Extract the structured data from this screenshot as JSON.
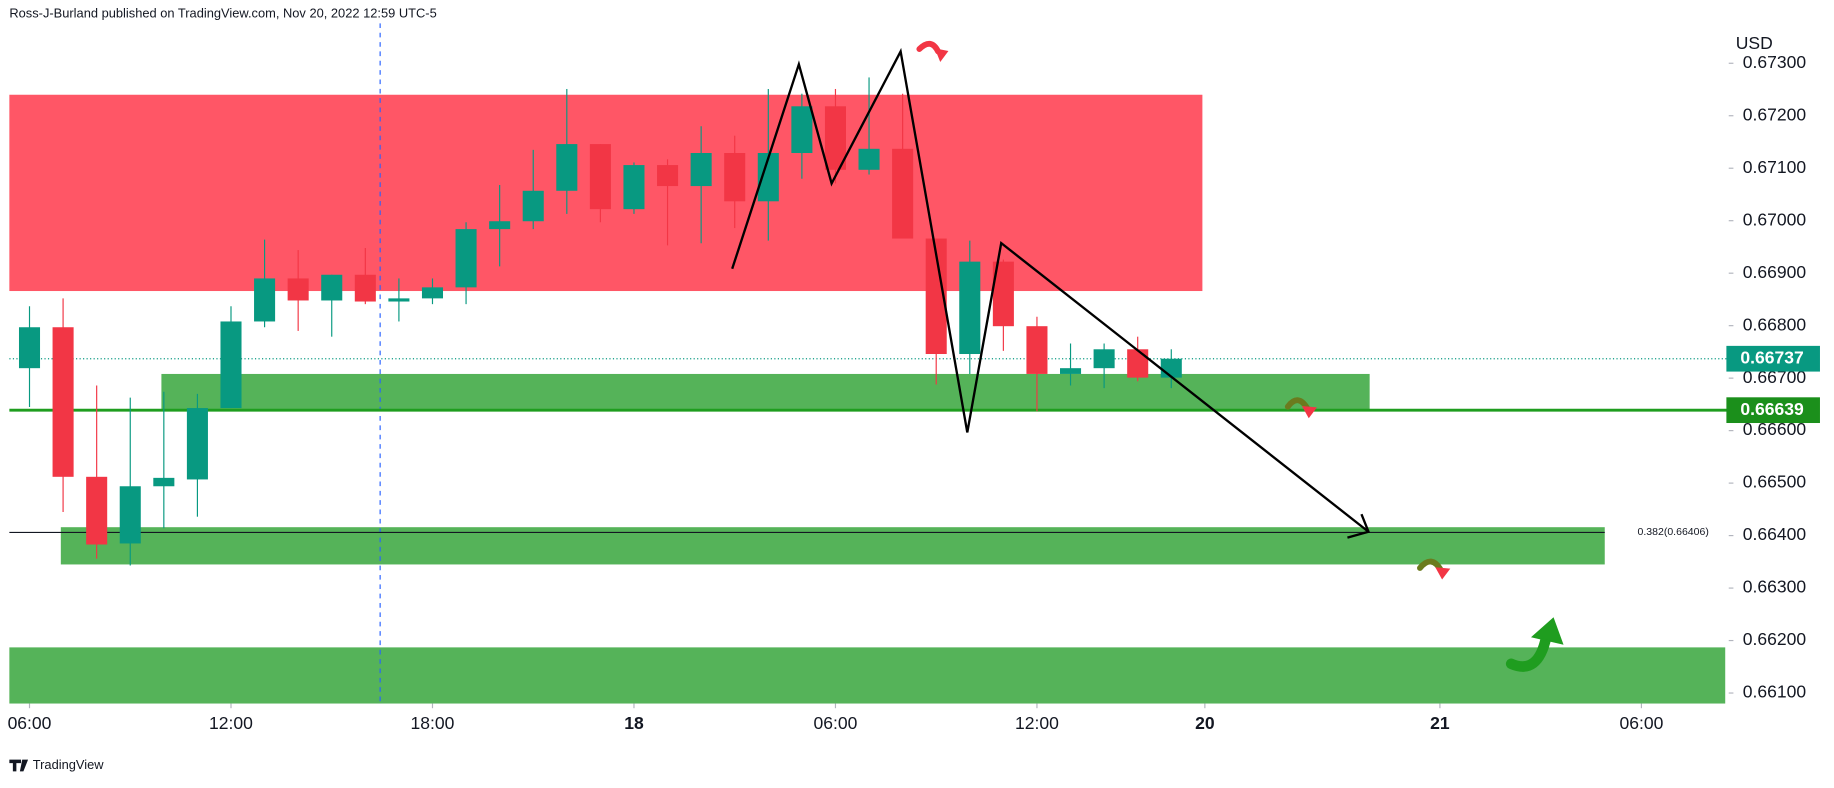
{
  "chart_data": {
    "type": "candlestick",
    "header": "Ross-J-Burland published on TradingView.com, Nov 20, 2022 12:59 UTC-5",
    "currency": "USD",
    "brand": "TradingView",
    "up_color": "#089981",
    "down_color": "#f23645",
    "open": [
      0.66719,
      0.66797,
      0.66512,
      0.66385,
      0.66494,
      0.66507,
      0.66643,
      0.66808,
      0.6689,
      0.66848,
      0.66897,
      0.66846,
      0.66852,
      0.66873,
      0.66984,
      0.66999,
      0.67057,
      0.67146,
      0.67022,
      0.67106,
      0.67066,
      0.67129,
      0.67037,
      0.67129,
      0.67218,
      0.67097,
      0.67137,
      0.66966,
      0.66746,
      0.66922,
      0.66799,
      0.66708,
      0.66719,
      0.66755,
      0.66701
    ],
    "high": [
      0.66837,
      0.66852,
      0.66686,
      0.66663,
      0.66674,
      0.6667,
      0.66837,
      0.66964,
      0.66944,
      0.66897,
      0.66948,
      0.6689,
      0.6689,
      0.66997,
      0.67068,
      0.67135,
      0.67251,
      0.67146,
      0.67111,
      0.67117,
      0.6718,
      0.67162,
      0.67251,
      0.67242,
      0.67251,
      0.67273,
      0.67242,
      0.66966,
      0.66962,
      0.66926,
      0.66817,
      0.66766,
      0.66766,
      0.66779,
      0.66755
    ],
    "low": [
      0.66645,
      0.66445,
      0.66356,
      0.66343,
      0.66414,
      0.66436,
      0.66643,
      0.66797,
      0.6679,
      0.66779,
      0.66841,
      0.66808,
      0.66841,
      0.66841,
      0.66913,
      0.66984,
      0.67013,
      0.66997,
      0.67013,
      0.66953,
      0.66957,
      0.66986,
      0.66962,
      0.6708,
      0.67071,
      0.67088,
      0.66966,
      0.66688,
      0.66708,
      0.66752,
      0.66637,
      0.66686,
      0.66681,
      0.66694,
      0.66681
    ],
    "close": [
      0.66797,
      0.66512,
      0.66383,
      0.66494,
      0.6651,
      0.66643,
      0.66808,
      0.6689,
      0.66848,
      0.66897,
      0.66846,
      0.66852,
      0.66873,
      0.66984,
      0.66999,
      0.67057,
      0.67146,
      0.67022,
      0.67106,
      0.67066,
      0.67129,
      0.67037,
      0.67129,
      0.67218,
      0.67097,
      0.67137,
      0.66966,
      0.66746,
      0.66922,
      0.66799,
      0.66708,
      0.66719,
      0.66755,
      0.66701,
      0.66737
    ],
    "xlim": [
      -0.6,
      50.6
    ],
    "xticks": [
      {
        "value": 0,
        "label": "06:00"
      },
      {
        "value": 6,
        "label": "12:00"
      },
      {
        "value": 12,
        "label": "18:00"
      },
      {
        "value": 18,
        "label": "18"
      },
      {
        "value": 24,
        "label": "06:00"
      },
      {
        "value": 30,
        "label": "12:00"
      },
      {
        "value": 35,
        "label": "20"
      },
      {
        "value": 42,
        "label": "21"
      },
      {
        "value": 48,
        "label": "06:00"
      }
    ],
    "ylim": [
      0.6608,
      0.67376
    ],
    "yticks": [
      {
        "value": 0.661,
        "label": "0.66100"
      },
      {
        "value": 0.662,
        "label": "0.66200"
      },
      {
        "value": 0.663,
        "label": "0.66300"
      },
      {
        "value": 0.664,
        "label": "0.66400"
      },
      {
        "value": 0.665,
        "label": "0.66500"
      },
      {
        "value": 0.666,
        "label": "0.66600"
      },
      {
        "value": 0.667,
        "label": "0.66700"
      },
      {
        "value": 0.668,
        "label": "0.66800"
      },
      {
        "value": 0.669,
        "label": "0.66900"
      },
      {
        "value": 0.67,
        "label": "0.67000"
      },
      {
        "value": 0.671,
        "label": "0.67100"
      },
      {
        "value": 0.672,
        "label": "0.67200"
      },
      {
        "value": 0.673,
        "label": "0.67300"
      }
    ],
    "last_price": 0.66737,
    "level": 0.66639,
    "fib": {
      "value": 0.66406,
      "label": "0.382(0.66406)"
    },
    "zones": [
      {
        "top": 0.6724,
        "bottom": 0.66866,
        "color": "#ff4d5e"
      },
      {
        "top": 0.66708,
        "bottom": 0.66641,
        "color": "#4caf50"
      },
      {
        "top": 0.66416,
        "bottom": 0.66345,
        "color": "#4caf50"
      },
      {
        "top": 0.66187,
        "bottom": 0.6608,
        "color": "#4caf50"
      }
    ]
  }
}
